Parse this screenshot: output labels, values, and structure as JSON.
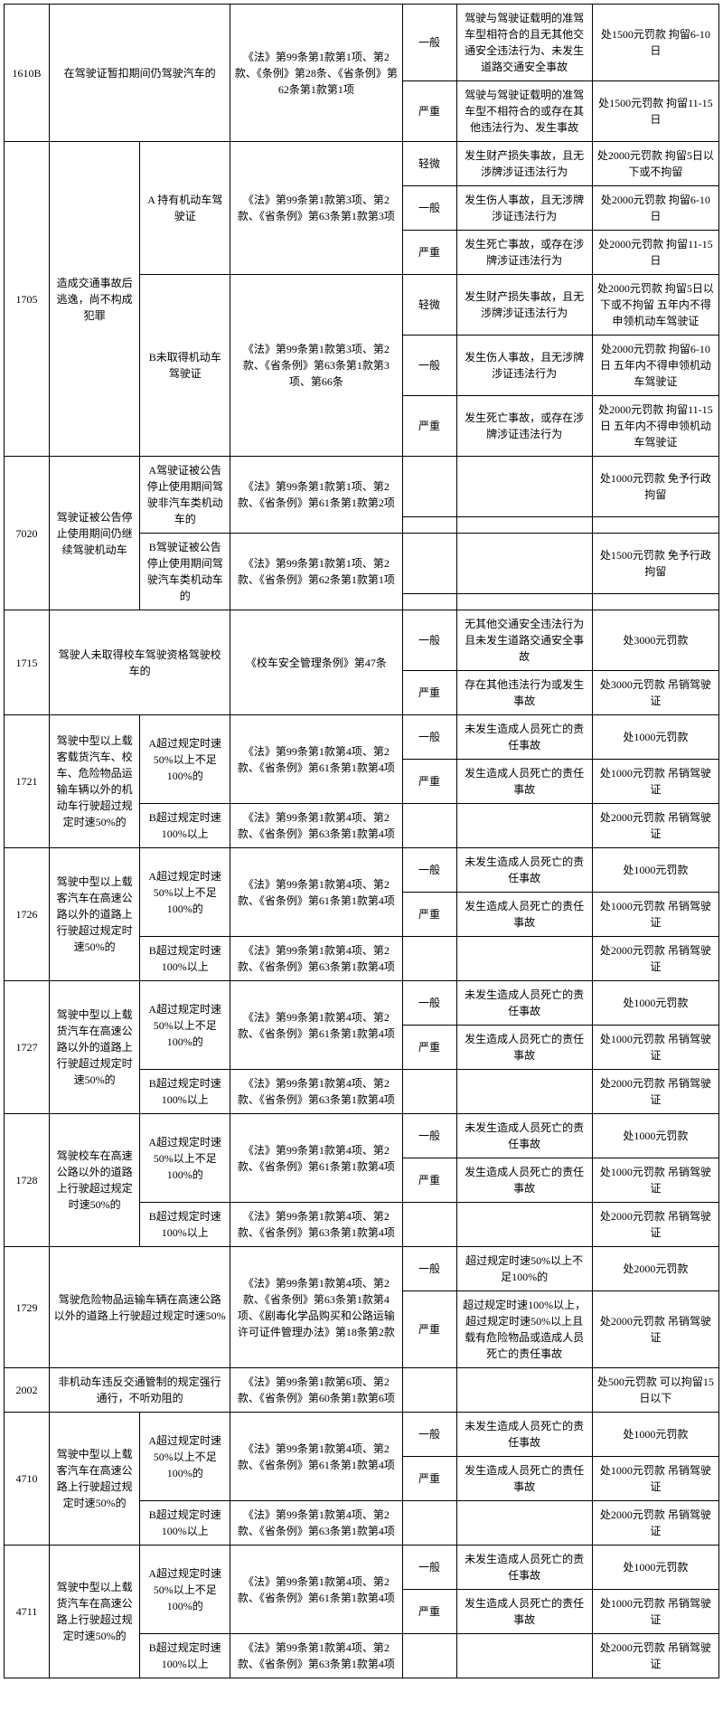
{
  "rows": [
    {
      "c": [
        "1610B",
        "在驾驶证暂扣期间仍驾驶汽车的",
        "",
        "《法》第99条第1款第1项、第2款、《条例》第28条、《省条例》第62条第1款第1项",
        "一般",
        "驾驶与驾驶证载明的准驾车型相符合的且无其他交通安全违法行为、未发生道路交通安全事故",
        "处1500元罚款 拘留6-10日"
      ],
      "rs": [
        2,
        2,
        0,
        2,
        1,
        1,
        1
      ]
    },
    {
      "c": [
        "",
        "",
        "",
        "",
        "严重",
        "驾驶与驾驶证载明的准驾车型不相符合的或存在其他违法行为、发生事故",
        "处1500元罚款 拘留11-15日"
      ],
      "rs": [
        0,
        0,
        0,
        0,
        1,
        1,
        1
      ]
    },
    {
      "c": [
        "1705",
        "造成交通事故后逃逸，尚不构成犯罪",
        "A 持有机动车驾驶证",
        "《法》第99条第1款第3项、第2款、《省条例》第63条第1款第3项",
        "轻微",
        "发生财产损失事故，且无涉牌涉证违法行为",
        "处2000元罚款 拘留5日以下或不拘留"
      ],
      "rs": [
        6,
        6,
        3,
        3,
        1,
        1,
        1
      ]
    },
    {
      "c": [
        "",
        "",
        "",
        "",
        "一般",
        "发生伤人事故，且无涉牌涉证违法行为",
        "处2000元罚款 拘留6-10日"
      ],
      "rs": [
        0,
        0,
        0,
        0,
        1,
        1,
        1
      ]
    },
    {
      "c": [
        "",
        "",
        "",
        "",
        "严重",
        "发生死亡事故，或存在涉牌涉证违法行为",
        "处2000元罚款 拘留11-15日"
      ],
      "rs": [
        0,
        0,
        0,
        0,
        1,
        1,
        1
      ]
    },
    {
      "c": [
        "",
        "",
        "B未取得机动车驾驶证",
        "《法》第99条第1款第3项、第2款、《省条例》第63条第1款第3项、第66条",
        "轻微",
        "发生财产损失事故，且无涉牌涉证违法行为",
        "处2000元罚款 拘留5日以下或不拘留 五年内不得申领机动车驾驶证"
      ],
      "rs": [
        0,
        0,
        3,
        3,
        1,
        1,
        1
      ]
    },
    {
      "c": [
        "",
        "",
        "",
        "",
        "一般",
        "发生伤人事故，且无涉牌涉证违法行为",
        "处2000元罚款 拘留6-10日 五年内不得申领机动车驾驶证"
      ],
      "rs": [
        0,
        0,
        0,
        0,
        1,
        1,
        1
      ]
    },
    {
      "c": [
        "",
        "",
        "",
        "",
        "严重",
        "发生死亡事故，或存在涉牌涉证违法行为",
        "处2000元罚款 拘留11-15日 五年内不得申领机动车驾驶证"
      ],
      "rs": [
        0,
        0,
        0,
        0,
        1,
        1,
        1
      ]
    },
    {
      "c": [
        "7020",
        "驾驶证被公告停止使用期间仍继续驾驶机动车",
        "A驾驶证被公告停止使用期间驾驶非汽车类机动车的",
        "《法》第99条第1款第1项、第2款、《省条例》第61条第1款第2项",
        "",
        "",
        "处1000元罚款 免予行政拘留"
      ],
      "rs": [
        4,
        4,
        2,
        2,
        1,
        1,
        1
      ]
    },
    {
      "c": [
        "",
        "",
        "",
        "",
        "",
        "",
        ""
      ],
      "rs": [
        0,
        0,
        0,
        0,
        1,
        1,
        1
      ]
    },
    {
      "c": [
        "",
        "",
        "B驾驶证被公告停止使用期间驾驶汽车类机动车的",
        "《法》第99条第1款第1项、第2款、《省条例》第62条第1款第1项",
        "",
        "",
        "处1500元罚款 免予行政拘留"
      ],
      "rs": [
        0,
        0,
        2,
        2,
        1,
        1,
        1
      ]
    },
    {
      "c": [
        "",
        "",
        "",
        "",
        "",
        "",
        ""
      ],
      "rs": [
        0,
        0,
        0,
        0,
        1,
        1,
        1
      ]
    },
    {
      "c": [
        "1715",
        "驾驶人未取得校车驾驶资格驾驶校车的",
        "",
        "《校车安全管理条例》第47条",
        "一般",
        "无其他交通安全违法行为且未发生道路交通安全事故",
        "处3000元罚款"
      ],
      "rs": [
        2,
        2,
        0,
        2,
        1,
        1,
        1
      ]
    },
    {
      "c": [
        "",
        "",
        "",
        "",
        "严重",
        "存在其他违法行为或发生事故",
        "处3000元罚款 吊销驾驶证"
      ],
      "rs": [
        0,
        0,
        0,
        0,
        1,
        1,
        1
      ]
    },
    {
      "c": [
        "1721",
        "驾驶中型以上载客载货汽车、校车、危险物品运输车辆以外的机动车行驶超过规定时速50%的",
        "A超过规定时速50%以上不足100%的",
        "《法》第99条第1款第4项、第2款、《省条例》第61条第1款第4项",
        "一般",
        "未发生造成人员死亡的责任事故",
        "处1000元罚款"
      ],
      "rs": [
        3,
        3,
        2,
        2,
        1,
        1,
        1
      ]
    },
    {
      "c": [
        "",
        "",
        "",
        "",
        "严重",
        "发生造成人员死亡的责任事故",
        "处1000元罚款 吊销驾驶证"
      ],
      "rs": [
        0,
        0,
        0,
        0,
        1,
        1,
        1
      ]
    },
    {
      "c": [
        "",
        "",
        "B超过规定时速100%以上",
        "《法》第99条第1款第4项、第2款、《省条例》第63条第1款第4项",
        "",
        "",
        "处2000元罚款 吊销驾驶证"
      ],
      "rs": [
        0,
        0,
        1,
        1,
        1,
        1,
        1
      ]
    },
    {
      "c": [
        "1726",
        "驾驶中型以上载客汽车在高速公路以外的道路上行驶超过规定时速50%的",
        "A超过规定时速50%以上不足100%的",
        "《法》第99条第1款第4项、第2款、《省条例》第61条第1款第4项",
        "一般",
        "未发生造成人员死亡的责任事故",
        "处1000元罚款"
      ],
      "rs": [
        3,
        3,
        2,
        2,
        1,
        1,
        1
      ]
    },
    {
      "c": [
        "",
        "",
        "",
        "",
        "严重",
        "发生造成人员死亡的责任事故",
        "处1000元罚款 吊销驾驶证"
      ],
      "rs": [
        0,
        0,
        0,
        0,
        1,
        1,
        1
      ]
    },
    {
      "c": [
        "",
        "",
        "B超过规定时速100%以上",
        "《法》第99条第1款第4项、第2款、《省条例》第63条第1款第4项",
        "",
        "",
        "处2000元罚款 吊销驾驶证"
      ],
      "rs": [
        0,
        0,
        1,
        1,
        1,
        1,
        1
      ]
    },
    {
      "c": [
        "1727",
        "驾驶中型以上载货汽车在高速公路以外的道路上行驶超过规定时速50%的",
        "A超过规定时速50%以上不足100%的",
        "《法》第99条第1款第4项、第2款、《省条例》第61条第1款第4项",
        "一般",
        "未发生造成人员死亡的责任事故",
        "处1000元罚款"
      ],
      "rs": [
        3,
        3,
        2,
        2,
        1,
        1,
        1
      ]
    },
    {
      "c": [
        "",
        "",
        "",
        "",
        "严重",
        "发生造成人员死亡的责任事故",
        "处1000元罚款 吊销驾驶证"
      ],
      "rs": [
        0,
        0,
        0,
        0,
        1,
        1,
        1
      ]
    },
    {
      "c": [
        "",
        "",
        "B超过规定时速100%以上",
        "《法》第99条第1款第4项、第2款、《省条例》第63条第1款第4项",
        "",
        "",
        "处2000元罚款 吊销驾驶证"
      ],
      "rs": [
        0,
        0,
        1,
        1,
        1,
        1,
        1
      ]
    },
    {
      "c": [
        "1728",
        "驾驶校车在高速公路以外的道路上行驶超过规定时速50%的",
        "A超过规定时速50%以上不足100%的",
        "《法》第99条第1款第4项、第2款、《省条例》第61条第1款第4项",
        "一般",
        "未发生造成人员死亡的责任事故",
        "处1000元罚款"
      ],
      "rs": [
        3,
        3,
        2,
        2,
        1,
        1,
        1
      ]
    },
    {
      "c": [
        "",
        "",
        "",
        "",
        "严重",
        "发生造成人员死亡的责任事故",
        "处1000元罚款 吊销驾驶证"
      ],
      "rs": [
        0,
        0,
        0,
        0,
        1,
        1,
        1
      ]
    },
    {
      "c": [
        "",
        "",
        "B超过规定时速100%以上",
        "《法》第99条第1款第4项、第2款、《省条例》第63条第1款第4项",
        "",
        "",
        "处2000元罚款 吊销驾驶证"
      ],
      "rs": [
        0,
        0,
        1,
        1,
        1,
        1,
        1
      ]
    },
    {
      "c": [
        "1729",
        "驾驶危险物品运输车辆在高速公路以外的道路上行驶超过规定时速50%",
        "",
        "《法》第99条第1款第4项、第2款、《省条例》第63条第1款第4项、《剧毒化学品购买和公路运输许可证件管理办法》第18条第2款",
        "一般",
        "超过规定时速50%以上不足100%的",
        "处2000元罚款"
      ],
      "rs": [
        2,
        2,
        0,
        2,
        1,
        1,
        1
      ]
    },
    {
      "c": [
        "",
        "",
        "",
        "",
        "严重",
        "超过规定时速100%以上，超过规定时速50%以上且载有危险物品或造成人员死亡的责任事故",
        "处2000元罚款 吊销驾驶证"
      ],
      "rs": [
        0,
        0,
        0,
        0,
        1,
        1,
        1
      ]
    },
    {
      "c": [
        "2002",
        "非机动车违反交通管制的规定强行通行，不听劝阻的",
        "",
        "《法》第99条第1款第6项、第2款、《省条例》第60条第1款第6项",
        "",
        "",
        "处500元罚款 可以拘留15日以下"
      ],
      "rs": [
        1,
        1,
        0,
        1,
        1,
        1,
        1
      ]
    },
    {
      "c": [
        "4710",
        "驾驶中型以上载客汽车在高速公路上行驶超过规定时速50%的",
        "A超过规定时速50%以上不足100%的",
        "《法》第99条第1款第4项、第2款、《省条例》第61条第1款第4项",
        "一般",
        "未发生造成人员死亡的责任事故",
        "处1000元罚款"
      ],
      "rs": [
        3,
        3,
        2,
        2,
        1,
        1,
        1
      ]
    },
    {
      "c": [
        "",
        "",
        "",
        "",
        "严重",
        "发生造成人员死亡的责任事故",
        "处1000元罚款 吊销驾驶证"
      ],
      "rs": [
        0,
        0,
        0,
        0,
        1,
        1,
        1
      ]
    },
    {
      "c": [
        "",
        "",
        "B超过规定时速100%以上",
        "《法》第99条第1款第4项、第2款、《省条例》第63条第1款第4项",
        "",
        "",
        "处2000元罚款 吊销驾驶证"
      ],
      "rs": [
        0,
        0,
        1,
        1,
        1,
        1,
        1
      ]
    },
    {
      "c": [
        "4711",
        "驾驶中型以上载货汽车在高速公路上行驶超过规定时速50%的",
        "A超过规定时速50%以上不足100%的",
        "《法》第99条第1款第4项、第2款、《省条例》第61条第1款第4项",
        "一般",
        "未发生造成人员死亡的责任事故",
        "处1000元罚款"
      ],
      "rs": [
        3,
        3,
        2,
        2,
        1,
        1,
        1
      ]
    },
    {
      "c": [
        "",
        "",
        "",
        "",
        "严重",
        "发生造成人员死亡的责任事故",
        "处1000元罚款 吊销驾驶证"
      ],
      "rs": [
        0,
        0,
        0,
        0,
        1,
        1,
        1
      ]
    },
    {
      "c": [
        "",
        "",
        "B超过规定时速100%以上",
        "《法》第99条第1款第4项、第2款、《省条例》第63条第1款第4项",
        "",
        "",
        "处2000元罚款 吊销驾驶证"
      ],
      "rs": [
        0,
        0,
        1,
        1,
        1,
        1,
        1
      ]
    }
  ],
  "col_classes": [
    "c1",
    "c2",
    "c3",
    "c4",
    "c5",
    "c6",
    "c7"
  ],
  "col_span_merge": {
    "1610B": [
      1,
      2
    ],
    "1715": [
      1,
      2
    ],
    "1729": [
      1,
      2
    ],
    "2002": [
      1,
      2
    ]
  }
}
